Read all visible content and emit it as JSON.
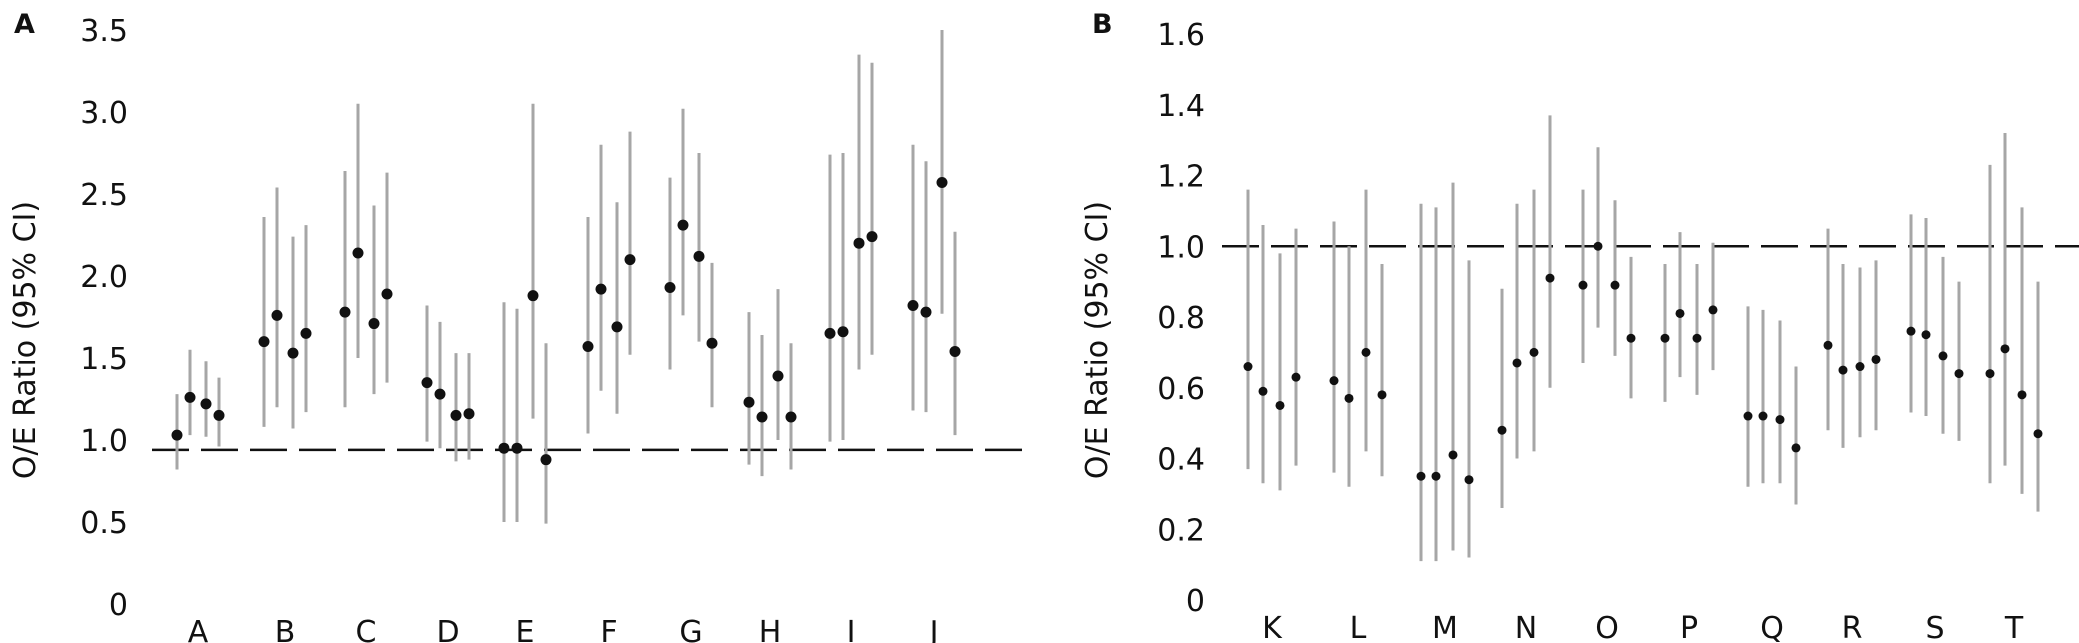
{
  "chart_data": [
    {
      "panel": "A",
      "type": "scatter",
      "ylabel": "O/E Ratio (95% CI)",
      "ylim": [
        0,
        3.5
      ],
      "yticks": [
        "0",
        "0.5",
        "1.0",
        "1.5",
        "2.0",
        "2.5",
        "3.0",
        "3.5"
      ],
      "reference_line": 0.94,
      "categories": [
        "A",
        "B",
        "C",
        "D",
        "E",
        "F",
        "G",
        "H",
        "I",
        "J"
      ],
      "groups": [
        {
          "category": "A",
          "points": [
            [
              1.03,
              0.82,
              1.28
            ],
            [
              1.26,
              1.03,
              1.55
            ],
            [
              1.22,
              1.02,
              1.48
            ],
            [
              1.15,
              0.96,
              1.38
            ]
          ]
        },
        {
          "category": "B",
          "points": [
            [
              1.6,
              1.08,
              2.36
            ],
            [
              1.76,
              1.2,
              2.54
            ],
            [
              1.53,
              1.07,
              2.24
            ],
            [
              1.65,
              1.17,
              2.31
            ]
          ]
        },
        {
          "category": "C",
          "points": [
            [
              1.78,
              1.2,
              2.64
            ],
            [
              2.14,
              1.5,
              3.05
            ],
            [
              1.71,
              1.28,
              2.43
            ],
            [
              1.89,
              1.35,
              2.63
            ]
          ]
        },
        {
          "category": "D",
          "points": [
            [
              1.35,
              0.99,
              1.82
            ],
            [
              1.28,
              0.95,
              1.72
            ],
            [
              1.15,
              0.87,
              1.53
            ],
            [
              1.16,
              0.88,
              1.53
            ]
          ]
        },
        {
          "category": "E",
          "points": [
            [
              0.95,
              0.5,
              1.84
            ],
            [
              0.95,
              0.5,
              1.8
            ],
            [
              1.88,
              1.13,
              3.05
            ],
            [
              0.88,
              0.49,
              1.59
            ]
          ]
        },
        {
          "category": "F",
          "points": [
            [
              1.57,
              1.04,
              2.36
            ],
            [
              1.92,
              1.3,
              2.8
            ],
            [
              1.69,
              1.16,
              2.45
            ],
            [
              2.1,
              1.52,
              2.88
            ]
          ]
        },
        {
          "category": "G",
          "points": [
            [
              1.93,
              1.43,
              2.6
            ],
            [
              2.31,
              1.76,
              3.02
            ],
            [
              2.12,
              1.6,
              2.75
            ],
            [
              1.59,
              1.2,
              2.08
            ]
          ]
        },
        {
          "category": "H",
          "points": [
            [
              1.23,
              0.85,
              1.78
            ],
            [
              1.14,
              0.78,
              1.64
            ],
            [
              1.39,
              1.0,
              1.92
            ],
            [
              1.14,
              0.82,
              1.59
            ]
          ]
        },
        {
          "category": "I",
          "points": [
            [
              1.65,
              0.99,
              2.74
            ],
            [
              1.66,
              1.0,
              2.75
            ],
            [
              2.2,
              1.43,
              3.35
            ],
            [
              2.24,
              1.52,
              3.3
            ]
          ]
        },
        {
          "category": "J",
          "points": [
            [
              1.82,
              1.18,
              2.8
            ],
            [
              1.78,
              1.17,
              2.7
            ],
            [
              2.57,
              1.77,
              3.5
            ],
            [
              1.54,
              1.03,
              2.27
            ]
          ]
        }
      ]
    },
    {
      "panel": "B",
      "type": "scatter",
      "ylabel": "O/E Ratio (95% CI)",
      "ylim": [
        0,
        1.6
      ],
      "yticks": [
        "0",
        "0.2",
        "0.4",
        "0.6",
        "0.8",
        "1.0",
        "1.2",
        "1.4",
        "1.6"
      ],
      "reference_line": 1.0,
      "categories": [
        "K",
        "L",
        "M",
        "N",
        "O",
        "P",
        "Q",
        "R",
        "S",
        "T"
      ],
      "groups": [
        {
          "category": "K",
          "points": [
            [
              0.66,
              0.37,
              1.16
            ],
            [
              0.59,
              0.33,
              1.06
            ],
            [
              0.55,
              0.31,
              0.98
            ],
            [
              0.63,
              0.38,
              1.05
            ]
          ]
        },
        {
          "category": "L",
          "points": [
            [
              0.62,
              0.36,
              1.07
            ],
            [
              0.57,
              0.32,
              1.0
            ],
            [
              0.7,
              0.42,
              1.16
            ],
            [
              0.58,
              0.35,
              0.95
            ]
          ]
        },
        {
          "category": "M",
          "points": [
            [
              0.35,
              0.11,
              1.12
            ],
            [
              0.35,
              0.11,
              1.11
            ],
            [
              0.41,
              0.14,
              1.18
            ],
            [
              0.34,
              0.12,
              0.96
            ]
          ]
        },
        {
          "category": "N",
          "points": [
            [
              0.48,
              0.26,
              0.88
            ],
            [
              0.67,
              0.4,
              1.12
            ],
            [
              0.7,
              0.42,
              1.16
            ],
            [
              0.91,
              0.6,
              1.37
            ]
          ]
        },
        {
          "category": "O",
          "points": [
            [
              0.89,
              0.67,
              1.16
            ],
            [
              1.0,
              0.77,
              1.28
            ],
            [
              0.89,
              0.69,
              1.13
            ],
            [
              0.74,
              0.57,
              0.97
            ]
          ]
        },
        {
          "category": "P",
          "points": [
            [
              0.74,
              0.56,
              0.95
            ],
            [
              0.81,
              0.63,
              1.04
            ],
            [
              0.74,
              0.58,
              0.95
            ],
            [
              0.82,
              0.65,
              1.01
            ]
          ]
        },
        {
          "category": "Q",
          "points": [
            [
              0.52,
              0.32,
              0.83
            ],
            [
              0.52,
              0.33,
              0.82
            ],
            [
              0.51,
              0.33,
              0.79
            ],
            [
              0.43,
              0.27,
              0.66
            ]
          ]
        },
        {
          "category": "R",
          "points": [
            [
              0.72,
              0.48,
              1.05
            ],
            [
              0.65,
              0.43,
              0.95
            ],
            [
              0.66,
              0.46,
              0.94
            ],
            [
              0.68,
              0.48,
              0.96
            ]
          ]
        },
        {
          "category": "S",
          "points": [
            [
              0.76,
              0.53,
              1.09
            ],
            [
              0.75,
              0.52,
              1.08
            ],
            [
              0.69,
              0.47,
              0.97
            ],
            [
              0.64,
              0.45,
              0.9
            ]
          ]
        },
        {
          "category": "T",
          "points": [
            [
              0.64,
              0.33,
              1.23
            ],
            [
              0.71,
              0.38,
              1.32
            ],
            [
              0.58,
              0.3,
              1.11
            ],
            [
              0.47,
              0.25,
              0.9
            ]
          ]
        }
      ]
    }
  ]
}
